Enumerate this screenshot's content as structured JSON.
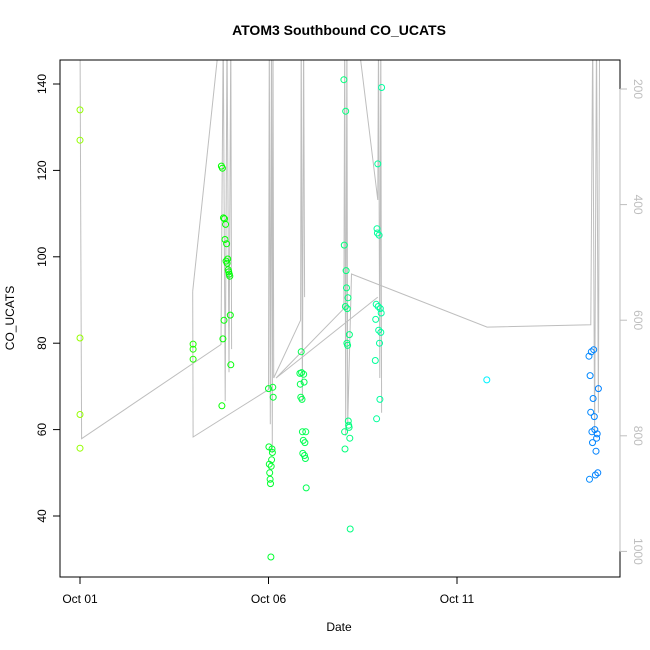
{
  "chart_data": {
    "type": "scatter",
    "title": "ATOM3 Southbound CO_UCATS",
    "xlabel": "Date",
    "ylabel": "CO_UCATS",
    "xlim": [
      "10-01T00:00",
      "10-15T12:00"
    ],
    "ylim": [
      27,
      146
    ],
    "x_ticks": [
      {
        "t": "10-01T00:00",
        "label": "Oct 01"
      },
      {
        "t": "10-06T00:00",
        "label": "Oct 06"
      },
      {
        "t": "10-11T00:00",
        "label": "Oct 11"
      }
    ],
    "y_ticks": [
      40,
      60,
      80,
      100,
      120,
      140
    ],
    "right_axis": {
      "ticks": [
        200,
        400,
        600,
        800,
        1000
      ],
      "range": [
        150,
        1050
      ],
      "reversed": true,
      "color": "#bebebe"
    },
    "grid": false,
    "point_color_scale": {
      "start_hue": 85,
      "end_hue": 210,
      "description_free": true
    },
    "clusters": [
      {
        "t0": "10-01T00:00",
        "t1": "10-01T00:00",
        "values": [
          134,
          127,
          81.2,
          63.5,
          55.7
        ]
      },
      {
        "t0": "10-04T00:00",
        "t1": "10-04T00:00",
        "values": [
          79.8,
          78.6,
          76.3
        ]
      },
      {
        "t0": "10-04T18:00",
        "t1": "10-05T00:00",
        "values": [
          121,
          65.5,
          120.5,
          81,
          109,
          85.3,
          108.8,
          104,
          107.5,
          99,
          103,
          98.5,
          99.5,
          97,
          96.5,
          96,
          95.5,
          86.5,
          75
        ]
      },
      {
        "t0": "10-06T00:00",
        "t1": "10-06T03:00",
        "values": [
          69.5,
          56,
          52,
          50,
          48.5,
          47.5,
          30.5,
          51.5,
          53,
          55.5,
          54.7,
          69.8,
          67.5
        ]
      },
      {
        "t0": "10-06T20:00",
        "t1": "10-07T00:00",
        "values": [
          73,
          70.5,
          67.5,
          78,
          73.2,
          67,
          59.5,
          54.5,
          57.5,
          72.8,
          71,
          54,
          57,
          53.3,
          59.5,
          46.5
        ]
      },
      {
        "t0": "10-08T00:00",
        "t1": "10-08T04:00",
        "values": [
          141,
          102.7,
          59.5,
          55.5,
          88.5,
          133.7,
          96.8,
          92.8,
          80,
          88,
          79.5,
          90.5,
          62,
          61,
          60.5,
          82,
          58,
          37
        ]
      },
      {
        "t0": "10-08T20:00",
        "t1": "10-09T00:00",
        "values": [
          76,
          85.5,
          89,
          62.5,
          106.5,
          105.5,
          121.5,
          88.5,
          83,
          105,
          80,
          67,
          88,
          82.5,
          87,
          139.2
        ]
      },
      {
        "t0": "10-11T19:00",
        "t1": "10-11T19:00",
        "values": [
          71.5
        ]
      },
      {
        "t0": "10-14T12:00",
        "t1": "10-14T18:00",
        "values": [
          77,
          48.5,
          72.5,
          64,
          78,
          59.5,
          57,
          67.2,
          78.5,
          63,
          60,
          49.5,
          55,
          58,
          59,
          50,
          69.5
        ]
      }
    ],
    "pressure_lines": [
      [
        [
          "10-01T00:00",
          100
        ],
        [
          "10-01T01:00",
          805
        ],
        [
          "10-04T17:45",
          642
        ],
        [
          "10-04T19:10",
          100
        ],
        [
          "10-04T20:25",
          740
        ],
        [
          "10-04T21:35",
          100
        ],
        [
          "10-04T22:50",
          690
        ],
        [
          "10-05T00:00",
          100
        ],
        [
          "10-05T00:30",
          650
        ]
      ],
      [
        [
          "10-03T23:45",
          550
        ],
        [
          "10-04T17:15",
          100
        ]
      ],
      [
        [
          "10-03T23:45",
          550
        ],
        [
          "10-04T00:00",
          802
        ],
        [
          "10-06T00:00",
          720
        ],
        [
          "10-06T00:30",
          100
        ],
        [
          "10-06T01:10",
          780
        ],
        [
          "10-06T01:55",
          100
        ],
        [
          "10-06T02:25",
          830
        ],
        [
          "10-06T02:50",
          100
        ],
        [
          "10-06T03:20",
          700
        ],
        [
          "10-06T20:25",
          600
        ],
        [
          "10-06T20:50",
          100
        ],
        [
          "10-06T21:35",
          740
        ],
        [
          "10-06T22:20",
          100
        ],
        [
          "10-06T23:00",
          560
        ]
      ],
      [
        [
          "10-06T04:50",
          700
        ],
        [
          "10-08T00:00",
          580
        ],
        [
          "10-08T00:30",
          100
        ],
        [
          "10-08T01:10",
          800
        ],
        [
          "10-08T01:55",
          100
        ],
        [
          "10-08T02:25",
          780
        ],
        [
          "10-08T04:50",
          520
        ],
        [
          "10-11T19:10",
          612
        ],
        [
          "10-14T13:10",
          608
        ],
        [
          "10-14T14:25",
          100
        ],
        [
          "10-14T15:35",
          800
        ],
        [
          "10-14T16:50",
          100
        ],
        [
          "10-14T18:00",
          760
        ],
        [
          "10-14T18:45",
          100
        ]
      ],
      [
        [
          "10-08T08:25",
          100
        ],
        [
          "10-08T21:35",
          392
        ],
        [
          "10-08T22:00",
          100
        ],
        [
          "10-08T22:50",
          700
        ],
        [
          "10-08T23:30",
          100
        ],
        [
          "10-09T00:00",
          760
        ]
      ],
      [
        [
          "10-06T04:50",
          700
        ],
        [
          "10-08T21:35",
          560
        ]
      ]
    ]
  }
}
